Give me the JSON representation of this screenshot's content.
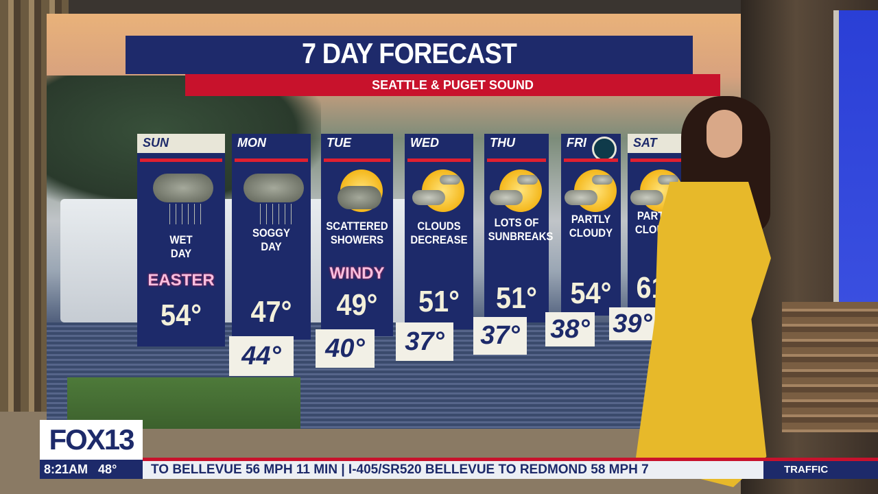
{
  "forecast": {
    "title": "7 DAY FORECAST",
    "subtitle": "SEATTLE & PUGET SOUND",
    "days": [
      {
        "day": "SUN",
        "icon": "rain-cloud-icon",
        "desc1": "WET",
        "desc2": "DAY",
        "badge": "EASTER",
        "high": "54°",
        "low": ""
      },
      {
        "day": "MON",
        "icon": "rain-cloud-icon",
        "desc1": "SOGGY",
        "desc2": "DAY",
        "badge": "",
        "high": "47°",
        "low": "44°"
      },
      {
        "day": "TUE",
        "icon": "sun-showers-icon",
        "desc1": "SCATTERED",
        "desc2": "SHOWERS",
        "badge": "WINDY",
        "high": "49°",
        "low": "40°"
      },
      {
        "day": "WED",
        "icon": "partly-sunny-icon",
        "desc1": "CLOUDS",
        "desc2": "DECREASE",
        "badge": "",
        "high": "51°",
        "low": "37°"
      },
      {
        "day": "THU",
        "icon": "partly-sunny-icon",
        "desc1": "LOTS OF",
        "desc2": "SUNBREAKS",
        "badge": "",
        "high": "51°",
        "low": "37°"
      },
      {
        "day": "FRI",
        "icon": "partly-sunny-icon",
        "desc1": "PARTLY",
        "desc2": "CLOUDY",
        "badge": "",
        "high": "54°",
        "low": "38°"
      },
      {
        "day": "SAT",
        "icon": "partly-sunny-icon",
        "desc1": "PARTLY",
        "desc2": "CLOUDY",
        "badge": "",
        "high": "61°",
        "low": "39°"
      }
    ]
  },
  "lower_third": {
    "logo": "FOX13",
    "time": "8:21AM",
    "temp": "48°",
    "ticker": "TO BELLEVUE  56 MPH  11 MIN  |  I-405/SR520  BELLEVUE TO REDMOND  58 MPH  7",
    "ticker_label": "TRAFFIC"
  },
  "colors": {
    "navy": "#1d2a6a",
    "red": "#c8122c",
    "dress": "#e7b92a"
  }
}
